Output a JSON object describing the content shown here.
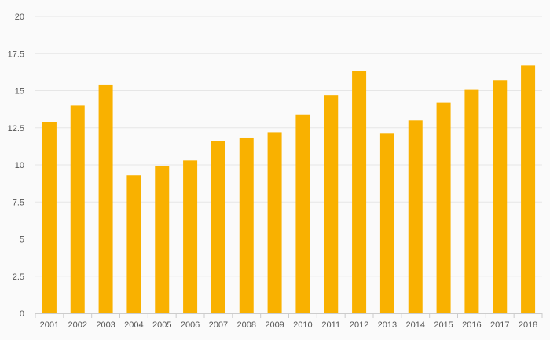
{
  "chart_data": {
    "type": "bar",
    "categories": [
      "2001",
      "2002",
      "2003",
      "2004",
      "2005",
      "2006",
      "2007",
      "2008",
      "2009",
      "2010",
      "2011",
      "2012",
      "2013",
      "2014",
      "2015",
      "2016",
      "2017",
      "2018"
    ],
    "values": [
      12.9,
      14.0,
      15.4,
      9.3,
      9.9,
      10.3,
      11.6,
      11.8,
      12.2,
      13.4,
      14.7,
      16.3,
      12.1,
      13.0,
      14.2,
      15.1,
      15.7,
      16.7
    ],
    "yticks": [
      "0",
      "2.5",
      "5",
      "7.5",
      "10",
      "12.5",
      "15",
      "17.5",
      "20"
    ],
    "ylim": [
      0,
      20
    ],
    "grid": true,
    "legend": "none",
    "title": "",
    "xlabel": "",
    "ylabel": "",
    "bar_color": "#f9b100",
    "grid_color": "#e6e6e6",
    "axis_color": "#cccccc",
    "text_color": "#555555",
    "background": "#fafafa"
  }
}
